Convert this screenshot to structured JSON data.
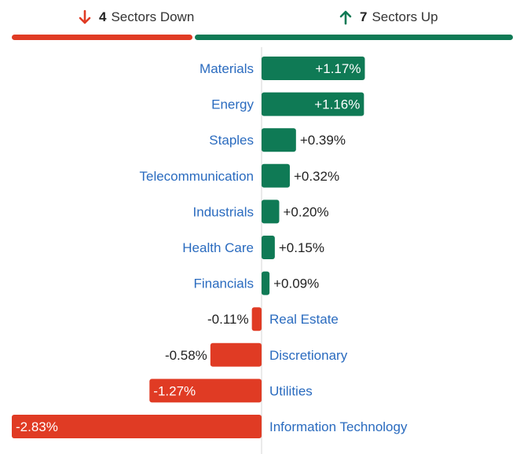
{
  "summary": {
    "down": {
      "count": "4",
      "label": "Sectors Down",
      "color": "#e03b24"
    },
    "up": {
      "count": "7",
      "label": "Sectors Up",
      "color": "#0f7a55"
    }
  },
  "chart_data": {
    "type": "bar",
    "orientation": "horizontal",
    "categories": [
      "Materials",
      "Energy",
      "Staples",
      "Telecommunication",
      "Industrials",
      "Health Care",
      "Financials",
      "Real Estate",
      "Discretionary",
      "Utilities",
      "Information Technology"
    ],
    "values": [
      1.17,
      1.16,
      0.39,
      0.32,
      0.2,
      0.15,
      0.09,
      -0.11,
      -0.58,
      -1.27,
      -2.83
    ],
    "value_labels": [
      "+1.17%",
      "+1.16%",
      "+0.39%",
      "+0.32%",
      "+0.20%",
      "+0.15%",
      "+0.09%",
      "-0.11%",
      "-0.58%",
      "-1.27%",
      "-2.83%"
    ],
    "positive_color": "#0f7a55",
    "negative_color": "#e03b24",
    "label_color": "#2a6bbf"
  }
}
